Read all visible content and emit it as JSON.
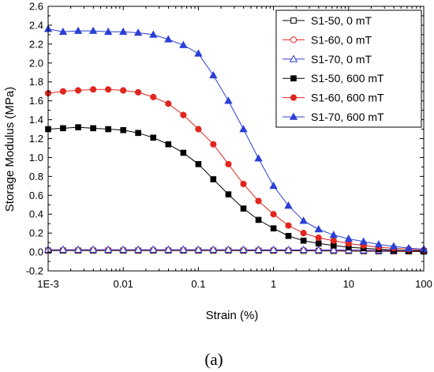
{
  "chart_data": {
    "type": "line",
    "xlabel": "Strain (%)",
    "ylabel": "Storage Modulus (MPa)",
    "xscale": "log",
    "xlim": [
      0.001,
      100
    ],
    "ylim": [
      -0.2,
      2.6
    ],
    "grid": false,
    "legend_position": "top-right",
    "x_tick_labels": [
      "1E-3",
      "0.01",
      "0.1",
      "1",
      "10",
      "100"
    ],
    "y_tick_labels": [
      "-0.2",
      "0.0",
      "0.2",
      "0.4",
      "0.6",
      "0.8",
      "1.0",
      "1.2",
      "1.4",
      "1.6",
      "1.8",
      "2.0",
      "2.2",
      "2.4",
      "2.6"
    ],
    "x": [
      0.001,
      0.00158,
      0.00251,
      0.00398,
      0.00631,
      0.01,
      0.0158,
      0.0251,
      0.0398,
      0.0631,
      0.1,
      0.158,
      0.251,
      0.398,
      0.631,
      1.0,
      1.58,
      2.51,
      3.98,
      6.31,
      10.0,
      15.8,
      25.1,
      39.8,
      63.1,
      100.0
    ],
    "series": [
      {
        "name": "S1-50, 0 mT",
        "color": "#000000",
        "marker": "square",
        "filled": false,
        "values": [
          0.015,
          0.015,
          0.015,
          0.015,
          0.015,
          0.015,
          0.015,
          0.015,
          0.015,
          0.015,
          0.015,
          0.015,
          0.015,
          0.014,
          0.014,
          0.014,
          0.013,
          0.013,
          0.012,
          0.011,
          0.01,
          0.009,
          0.008,
          0.007,
          0.006,
          0.005
        ]
      },
      {
        "name": "S1-60, 0 mT",
        "color": "#e0271f",
        "marker": "circle",
        "filled": false,
        "values": [
          0.02,
          0.02,
          0.02,
          0.02,
          0.02,
          0.02,
          0.02,
          0.02,
          0.02,
          0.02,
          0.02,
          0.02,
          0.02,
          0.019,
          0.019,
          0.019,
          0.018,
          0.018,
          0.017,
          0.016,
          0.015,
          0.014,
          0.012,
          0.011,
          0.01,
          0.009
        ]
      },
      {
        "name": "S1-70, 0 mT",
        "color": "#2a3fd6",
        "marker": "triangle",
        "filled": false,
        "values": [
          0.025,
          0.025,
          0.025,
          0.025,
          0.025,
          0.025,
          0.025,
          0.025,
          0.025,
          0.025,
          0.025,
          0.025,
          0.025,
          0.024,
          0.024,
          0.024,
          0.023,
          0.023,
          0.022,
          0.021,
          0.02,
          0.019,
          0.017,
          0.016,
          0.015,
          0.014
        ]
      },
      {
        "name": "S1-50, 600 mT",
        "color": "#000000",
        "marker": "square",
        "filled": true,
        "values": [
          1.3,
          1.31,
          1.32,
          1.31,
          1.3,
          1.29,
          1.26,
          1.21,
          1.14,
          1.05,
          0.93,
          0.77,
          0.61,
          0.46,
          0.34,
          0.25,
          0.17,
          0.12,
          0.09,
          0.07,
          0.05,
          0.04,
          0.03,
          0.02,
          0.015,
          0.01
        ]
      },
      {
        "name": "S1-60, 600 mT",
        "color": "#e0271f",
        "marker": "circle",
        "filled": true,
        "values": [
          1.68,
          1.7,
          1.71,
          1.72,
          1.72,
          1.71,
          1.69,
          1.64,
          1.57,
          1.45,
          1.3,
          1.14,
          0.93,
          0.72,
          0.54,
          0.4,
          0.28,
          0.2,
          0.15,
          0.12,
          0.09,
          0.07,
          0.05,
          0.04,
          0.03,
          0.02
        ]
      },
      {
        "name": "S1-70, 600 mT",
        "color": "#2a3fd6",
        "marker": "triangle",
        "filled": true,
        "values": [
          2.36,
          2.33,
          2.34,
          2.34,
          2.33,
          2.33,
          2.32,
          2.3,
          2.25,
          2.19,
          2.1,
          1.87,
          1.6,
          1.3,
          0.99,
          0.7,
          0.49,
          0.33,
          0.24,
          0.18,
          0.14,
          0.11,
          0.08,
          0.06,
          0.04,
          0.03
        ]
      }
    ]
  },
  "panel_label": "(a)"
}
